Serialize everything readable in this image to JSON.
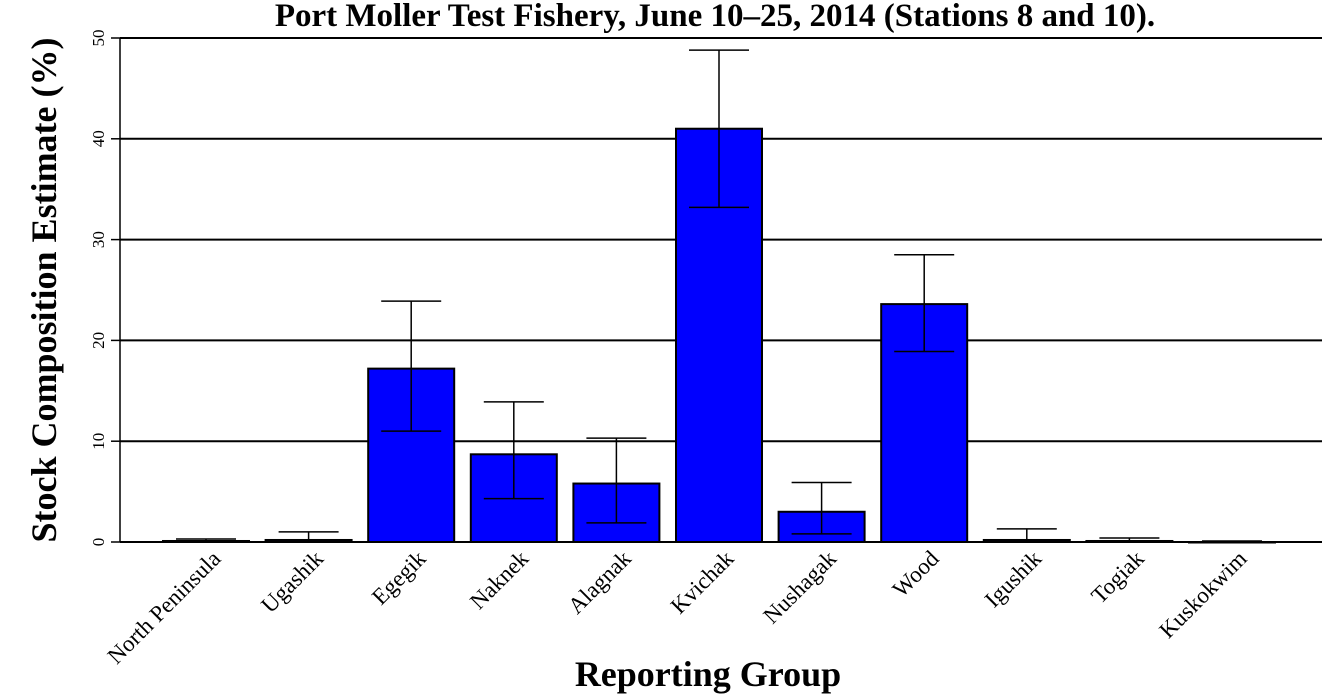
{
  "chart_data": {
    "type": "bar",
    "title": "Port Moller Test Fishery, June 10–25, 2014 (Stations 8 and 10).",
    "xlabel": "Reporting Group",
    "ylabel": "Stock Composition Estimate (%)",
    "ylim": [
      0,
      50
    ],
    "yticks": [
      0,
      10,
      20,
      30,
      40,
      50
    ],
    "grid": true,
    "categories": [
      "North Peninsula",
      "Ugashik",
      "Egegik",
      "Naknek",
      "Alagnak",
      "Kvichak",
      "Nushagak",
      "Wood",
      "Igushik",
      "Togiak",
      "Kuskokwim"
    ],
    "values": [
      0.1,
      0.2,
      17.2,
      8.7,
      5.8,
      41.0,
      3.0,
      23.6,
      0.2,
      0.1,
      0.0
    ],
    "error_lower": [
      0.0,
      0.0,
      11.0,
      4.3,
      1.9,
      33.2,
      0.8,
      18.9,
      0.0,
      0.0,
      0.0
    ],
    "error_upper": [
      0.3,
      1.0,
      23.9,
      13.9,
      10.3,
      48.8,
      5.9,
      28.5,
      1.3,
      0.4,
      0.1
    ],
    "bar_color": "#0000ff",
    "series": [
      {
        "values": [
          0.1,
          0.2,
          17.2,
          8.7,
          5.8,
          41.0,
          3.0,
          23.6,
          0.2,
          0.1,
          0.0
        ]
      }
    ]
  }
}
